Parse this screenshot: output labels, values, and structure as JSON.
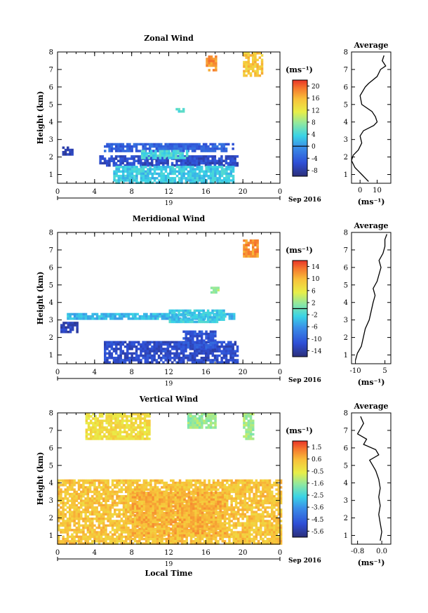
{
  "chart_data": [
    {
      "type": "heatmap",
      "title": "Zonal Wind",
      "ylabel": "Height (km)",
      "xlabel": "",
      "x_ticks": [
        "0",
        "4",
        "8",
        "12",
        "16",
        "20",
        "0"
      ],
      "y_ticks": [
        "1",
        "2",
        "3",
        "4",
        "5",
        "6",
        "7",
        "8"
      ],
      "xlim": [
        0,
        24
      ],
      "ylim": [
        0.5,
        8
      ],
      "date_label": "19",
      "month_label": "Sep 2016",
      "unit": "(ms⁻¹)",
      "colorbar": {
        "ticks": [
          "20",
          "16",
          "12",
          "8",
          "4",
          "0",
          "-4",
          "-8"
        ],
        "min": -10,
        "max": 22,
        "zero_line": 0
      },
      "regions": [
        {
          "x0": 5.0,
          "x1": 19.0,
          "y0": 2.4,
          "y1": 2.8,
          "value": -4
        },
        {
          "x0": 4.5,
          "x1": 19.5,
          "y0": 1.5,
          "y1": 2.1,
          "value": -6
        },
        {
          "x0": 6.0,
          "x1": 19.0,
          "y0": 0.6,
          "y1": 1.5,
          "value": 3
        },
        {
          "x0": 9.0,
          "x1": 14.0,
          "y0": 1.9,
          "y1": 2.4,
          "value": 4
        },
        {
          "x0": 16.0,
          "x1": 17.0,
          "y0": 7.0,
          "y1": 7.8,
          "value": 18
        },
        {
          "x0": 20.0,
          "x1": 22.0,
          "y0": 6.6,
          "y1": 8.0,
          "value": 15
        },
        {
          "x0": 0.5,
          "x1": 1.5,
          "y0": 2.1,
          "y1": 2.6,
          "value": -7
        },
        {
          "x0": 12.5,
          "x1": 13.5,
          "y0": 4.6,
          "y1": 4.8,
          "value": 5
        }
      ],
      "profile": {
        "title": "Average",
        "xlabel": "(ms⁻¹)",
        "x_ticks": [
          "0",
          "10"
        ],
        "xlim": [
          -5,
          18
        ],
        "height": [
          0.6,
          1.0,
          1.4,
          1.8,
          2.1,
          2.4,
          2.8,
          3.2,
          3.5,
          3.8,
          4.0,
          4.3,
          4.6,
          5.0,
          5.5,
          6.0,
          6.2,
          6.6,
          7.0,
          7.2,
          7.5,
          7.8
        ],
        "wind": [
          5,
          1,
          -3,
          -5,
          -4,
          -1,
          1,
          0,
          2,
          8,
          10,
          9,
          7,
          1,
          0,
          3,
          5,
          10,
          12,
          15,
          13,
          14
        ]
      }
    },
    {
      "type": "heatmap",
      "title": "Meridional Wind",
      "ylabel": "Height (km)",
      "xlabel": "",
      "x_ticks": [
        "0",
        "4",
        "8",
        "12",
        "16",
        "20",
        "0"
      ],
      "y_ticks": [
        "1",
        "2",
        "3",
        "4",
        "5",
        "6",
        "7",
        "8"
      ],
      "xlim": [
        0,
        24
      ],
      "ylim": [
        0.5,
        8
      ],
      "date_label": "19",
      "month_label": "Sep 2016",
      "unit": "(ms⁻¹)",
      "colorbar": {
        "ticks": [
          "14",
          "10",
          "6",
          "2",
          "-2",
          "-6",
          "-10",
          "-14"
        ],
        "min": -16,
        "max": 16,
        "zero_line": 0
      },
      "regions": [
        {
          "x0": 5.0,
          "x1": 19.5,
          "y0": 0.6,
          "y1": 1.8,
          "value": -12
        },
        {
          "x0": 1.0,
          "x1": 19.0,
          "y0": 3.1,
          "y1": 3.4,
          "value": -4
        },
        {
          "x0": 12.0,
          "x1": 18.0,
          "y0": 2.9,
          "y1": 3.6,
          "value": -3
        },
        {
          "x0": 13.5,
          "x1": 17.0,
          "y0": 1.4,
          "y1": 2.4,
          "value": -11
        },
        {
          "x0": 20.0,
          "x1": 21.5,
          "y0": 6.7,
          "y1": 7.6,
          "value": 12
        },
        {
          "x0": 16.5,
          "x1": 17.3,
          "y0": 4.6,
          "y1": 4.9,
          "value": 2
        },
        {
          "x0": 0.3,
          "x1": 2.0,
          "y0": 2.3,
          "y1": 2.9,
          "value": -13
        }
      ],
      "profile": {
        "title": "Average",
        "xlabel": "(ms⁻¹)",
        "x_ticks": [
          "-10",
          "5"
        ],
        "xlim": [
          -12,
          8
        ],
        "height": [
          0.7,
          1.1,
          1.5,
          2.0,
          2.5,
          3.0,
          3.5,
          4.0,
          4.4,
          4.8,
          5.2,
          5.6,
          6.0,
          6.4,
          6.8,
          7.2,
          7.6,
          7.9
        ],
        "wind": [
          -10,
          -9,
          -7,
          -6,
          -5,
          -3,
          -2,
          -1,
          0,
          -1,
          1,
          2,
          3,
          2,
          4,
          5,
          5,
          6
        ]
      }
    },
    {
      "type": "heatmap",
      "title": "Vertical Wind",
      "ylabel": "Height (km)",
      "xlabel": "Local Time",
      "x_ticks": [
        "0",
        "4",
        "8",
        "12",
        "16",
        "20",
        "0"
      ],
      "y_ticks": [
        "1",
        "2",
        "3",
        "4",
        "5",
        "6",
        "7",
        "8"
      ],
      "xlim": [
        0,
        24
      ],
      "ylim": [
        0.5,
        8
      ],
      "date_label": "19",
      "month_label": "Sep 2016",
      "unit": "(ms⁻¹)",
      "colorbar": {
        "ticks": [
          "1.5",
          "0.6",
          "-0.5",
          "-1.6",
          "-2.5",
          "-3.6",
          "-4.5",
          "-5.6"
        ],
        "min": -6,
        "max": 2,
        "zero_line": null
      },
      "regions": [
        {
          "x0": 0.0,
          "x1": 24.0,
          "y0": 0.6,
          "y1": 4.2,
          "value": 0.3
        },
        {
          "x0": 8.0,
          "x1": 18.0,
          "y0": 1.0,
          "y1": 3.5,
          "value": 0.6
        },
        {
          "x0": 3.0,
          "x1": 10.0,
          "y0": 6.5,
          "y1": 8.0,
          "value": -0.2
        },
        {
          "x0": 14.0,
          "x1": 17.0,
          "y0": 7.2,
          "y1": 8.0,
          "value": -1.5
        },
        {
          "x0": 20.0,
          "x1": 21.0,
          "y0": 6.5,
          "y1": 8.0,
          "value": -1.4
        }
      ],
      "profile": {
        "title": "Average",
        "xlabel": "(ms⁻¹)",
        "x_ticks": [
          "-0.8",
          "0.0"
        ],
        "xlim": [
          -1.0,
          0.3
        ],
        "height": [
          0.7,
          1.2,
          1.7,
          2.2,
          2.7,
          3.2,
          3.7,
          4.2,
          4.7,
          5.0,
          5.3,
          5.6,
          5.9,
          6.2,
          6.5,
          6.8,
          7.1,
          7.4,
          7.8
        ],
        "wind": [
          -0.05,
          0.0,
          -0.05,
          -0.1,
          -0.05,
          -0.1,
          -0.05,
          -0.1,
          -0.2,
          -0.3,
          -0.4,
          -0.1,
          -0.2,
          -0.6,
          -0.5,
          -0.8,
          -0.7,
          -0.6,
          -0.7
        ]
      }
    }
  ]
}
